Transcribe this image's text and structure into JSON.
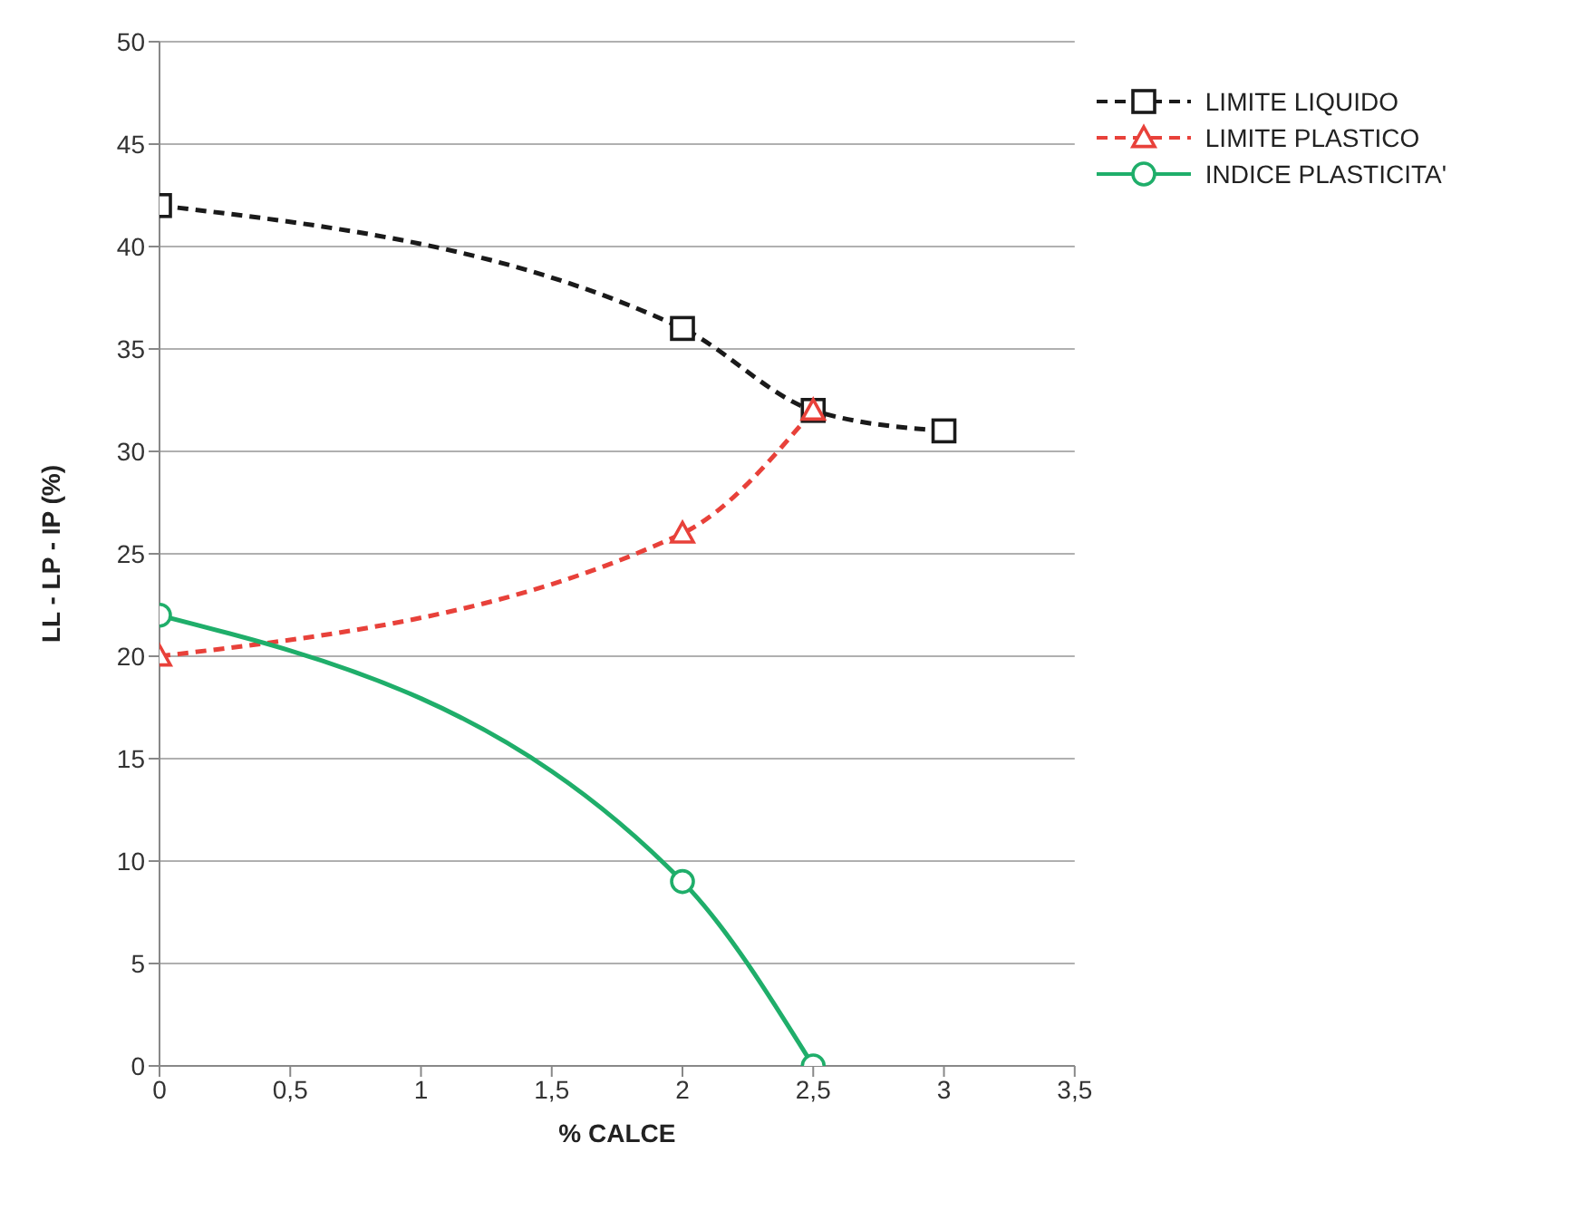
{
  "chart_data": {
    "type": "line",
    "xlabel": "% CALCE",
    "ylabel": "LL - LP - IP (%)",
    "xlim": [
      0,
      3.5
    ],
    "xticks": [
      0,
      {
        "value": 0.5,
        "label": "0,5"
      },
      1,
      {
        "value": 1.5,
        "label": "1,5"
      },
      2,
      {
        "value": 2.5,
        "label": "2,5"
      },
      3,
      {
        "value": 3.5,
        "label": "3,5"
      }
    ],
    "ylim": [
      0,
      50
    ],
    "yticks": [
      0,
      5,
      10,
      15,
      20,
      25,
      30,
      35,
      40,
      45,
      50
    ],
    "grid": "y",
    "legend": "top right",
    "series": [
      {
        "name": "LIMITE LIQUIDO",
        "color": "#1a1a1a",
        "x": [
          0,
          2,
          2.5,
          3
        ],
        "values": [
          42,
          36,
          32,
          31
        ],
        "marker": "square",
        "line_style": "dashed"
      },
      {
        "name": "LIMITE PLASTICO",
        "color": "#e8413a",
        "x": [
          0,
          2,
          2.5
        ],
        "values": [
          20,
          26,
          32
        ],
        "marker": "triangle",
        "line_style": "dashed"
      },
      {
        "name": "INDICE PLASTICITA'",
        "color": "#1fae6a",
        "x": [
          0,
          2,
          2.5
        ],
        "values": [
          22,
          9,
          0
        ],
        "marker": "circle",
        "line_style": "solid"
      }
    ]
  }
}
